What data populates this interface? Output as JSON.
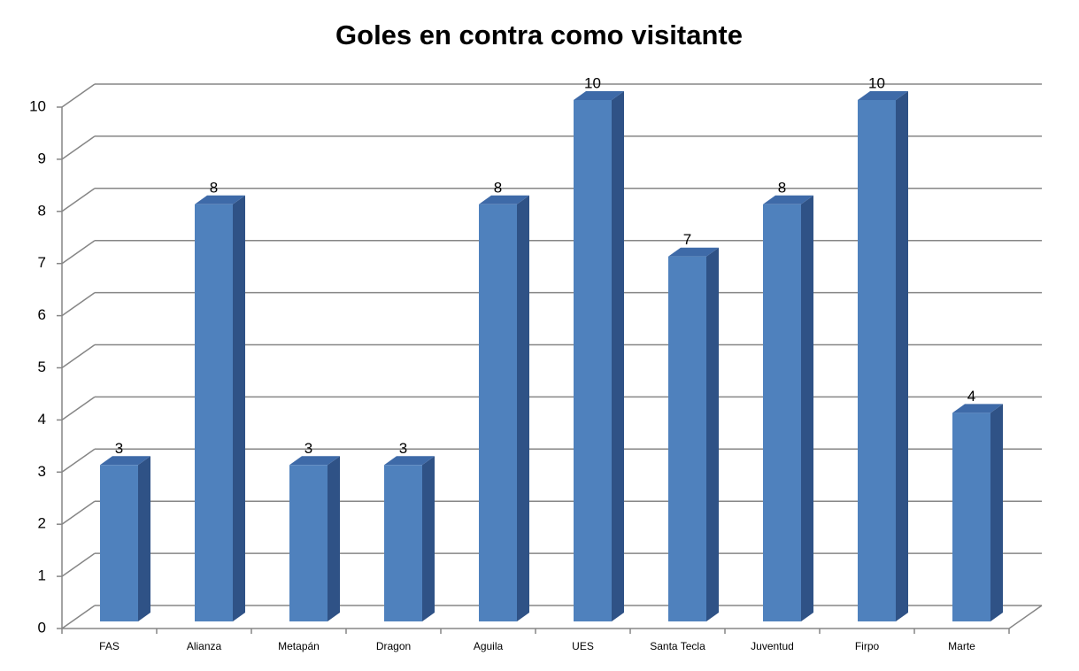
{
  "chart_data": {
    "type": "bar3d",
    "title": "Goles en contra como visitante",
    "categories": [
      "FAS",
      "Alianza",
      "Metapán",
      "Dragon",
      "Aguila",
      "UES",
      "Santa Tecla",
      "Juventud",
      "Firpo",
      "Marte"
    ],
    "values": [
      3,
      8,
      3,
      3,
      8,
      10,
      7,
      8,
      10,
      4
    ],
    "color": "#4f81bd",
    "ylim": [
      0,
      10
    ],
    "yticks": [
      0,
      1,
      2,
      3,
      4,
      5,
      6,
      7,
      8,
      9,
      10
    ],
    "grid": true
  }
}
